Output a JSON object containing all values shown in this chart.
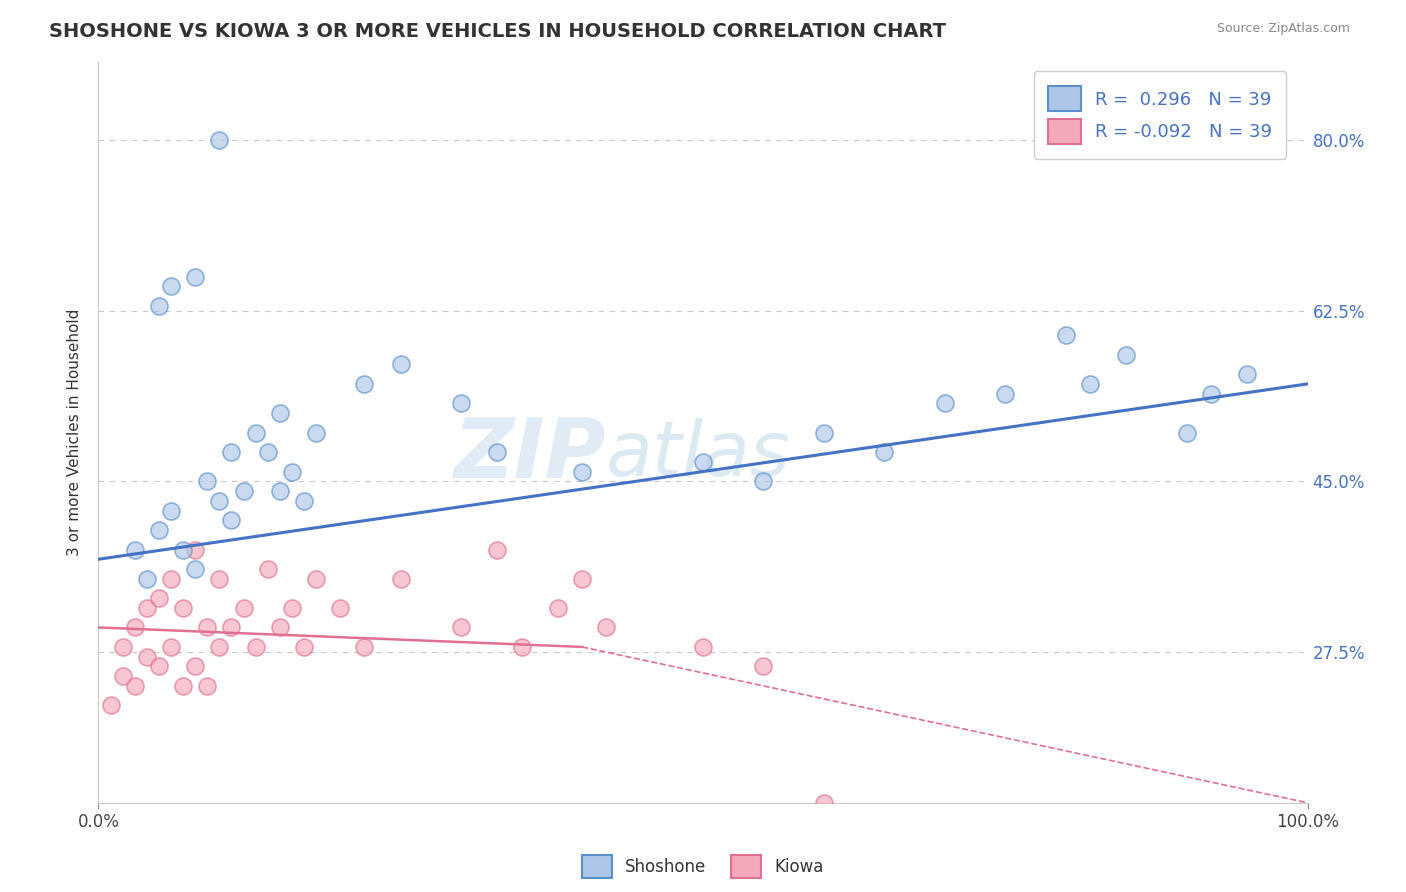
{
  "title": "SHOSHONE VS KIOWA 3 OR MORE VEHICLES IN HOUSEHOLD CORRELATION CHART",
  "source": "Source: ZipAtlas.com",
  "ylabel": "3 or more Vehicles in Household",
  "watermark": "ZIPatlas",
  "xlim": [
    0,
    100
  ],
  "ylim": [
    12,
    88
  ],
  "yticks": [
    27.5,
    45.0,
    62.5,
    80.0
  ],
  "ytick_labels": [
    "27.5%",
    "45.0%",
    "62.5%",
    "80.0%"
  ],
  "xtick_labels": [
    "0.0%",
    "100.0%"
  ],
  "shoshone_color": "#adc6e8",
  "kiowa_color": "#f4a8bc",
  "shoshone_edge_color": "#5b8fc9",
  "kiowa_edge_color": "#e07090",
  "shoshone_line_color": "#4472c4",
  "kiowa_line_color": "#e07090",
  "background_color": "#ffffff",
  "grid_color": "#c8c8c8",
  "shoshone_x": [
    3,
    4,
    5,
    6,
    7,
    8,
    9,
    10,
    11,
    11,
    12,
    13,
    14,
    15,
    15,
    16,
    17,
    18,
    22,
    25,
    30,
    33,
    40,
    50,
    55,
    60,
    65,
    70,
    75,
    80,
    82,
    85,
    90,
    92,
    95,
    5,
    6,
    8,
    10
  ],
  "shoshone_y": [
    38,
    35,
    40,
    42,
    38,
    36,
    45,
    43,
    48,
    41,
    44,
    50,
    48,
    52,
    44,
    46,
    43,
    50,
    55,
    57,
    53,
    48,
    46,
    47,
    45,
    50,
    48,
    53,
    54,
    60,
    55,
    58,
    50,
    54,
    56,
    63,
    65,
    66,
    80
  ],
  "kiowa_x": [
    1,
    2,
    2,
    3,
    3,
    4,
    4,
    5,
    5,
    6,
    6,
    7,
    7,
    8,
    8,
    9,
    9,
    10,
    10,
    11,
    12,
    13,
    14,
    15,
    16,
    17,
    18,
    20,
    22,
    25,
    30,
    33,
    35,
    38,
    40,
    42,
    50,
    55,
    60
  ],
  "kiowa_y": [
    22,
    25,
    28,
    24,
    30,
    27,
    32,
    26,
    33,
    28,
    35,
    24,
    32,
    26,
    38,
    24,
    30,
    28,
    35,
    30,
    32,
    28,
    36,
    30,
    32,
    28,
    35,
    32,
    28,
    35,
    30,
    38,
    28,
    32,
    35,
    30,
    28,
    26,
    12
  ],
  "blue_line_x0": 0,
  "blue_line_y0": 37,
  "blue_line_x1": 100,
  "blue_line_y1": 55,
  "pink_solid_x0": 0,
  "pink_solid_y0": 30,
  "pink_solid_x1": 40,
  "pink_solid_y1": 28,
  "pink_dash_x0": 40,
  "pink_dash_y0": 28,
  "pink_dash_x1": 100,
  "pink_dash_y1": 12
}
